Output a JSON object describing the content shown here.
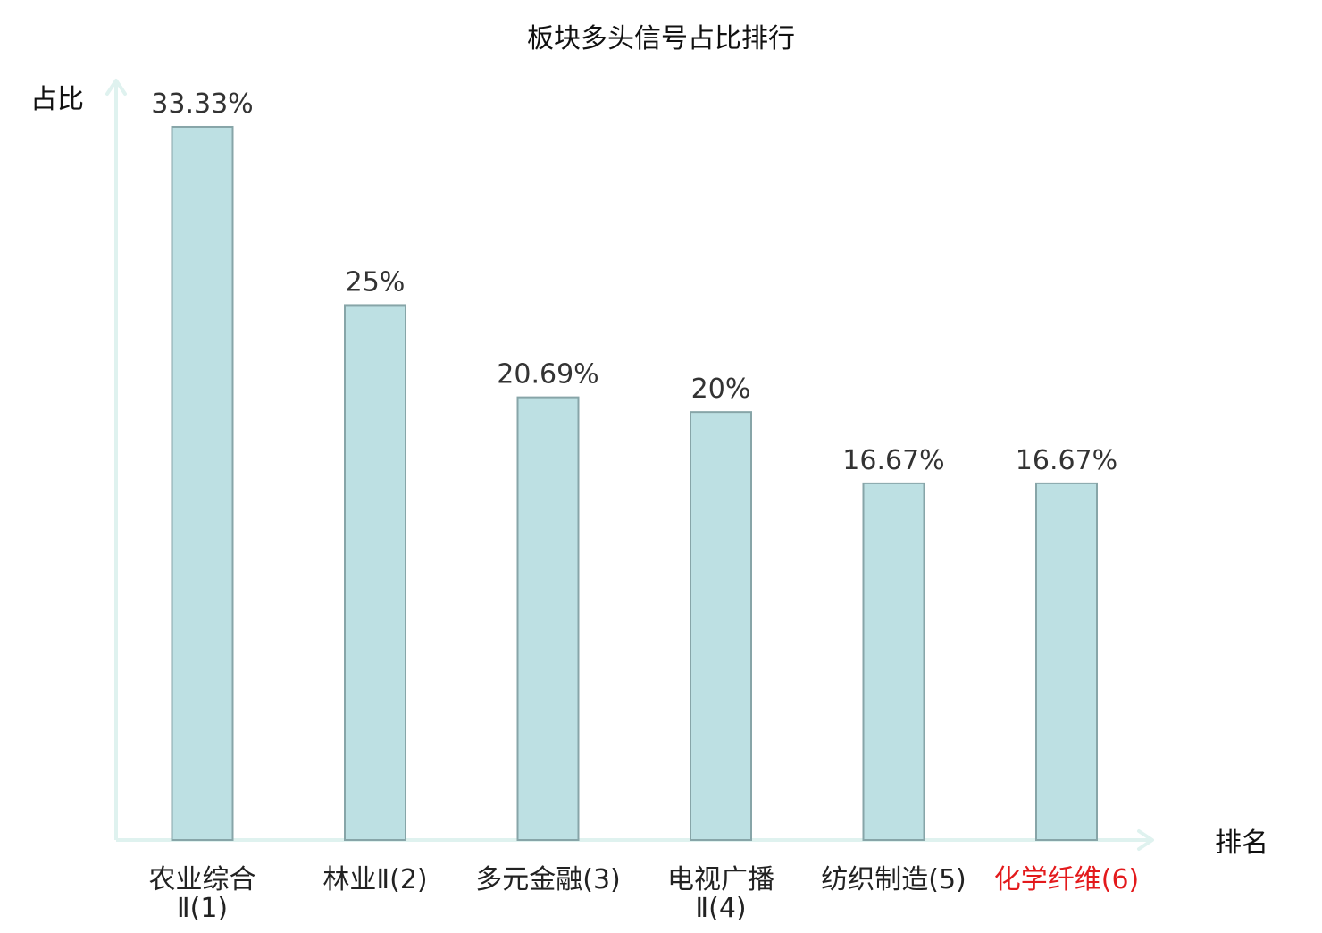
{
  "chart_data": {
    "type": "bar",
    "title": "板块多头信号占比排行",
    "ylabel": "占比",
    "xlabel": "排名",
    "ylim": [
      0,
      35
    ],
    "grid": false,
    "categories": [
      [
        "农业综合",
        "Ⅱ(1)"
      ],
      [
        "林业Ⅱ(2)"
      ],
      [
        "多元金融(3)"
      ],
      [
        "电视广播",
        "Ⅱ(4)"
      ],
      [
        "纺织制造(5)"
      ],
      [
        "化学纤维(6)"
      ]
    ],
    "values": [
      33.33,
      25,
      20.69,
      20,
      16.67,
      16.67
    ],
    "value_labels": [
      "33.33%",
      "25%",
      "20.69%",
      "20%",
      "16.67%",
      "16.67%"
    ],
    "highlight_index": 5,
    "colors": {
      "bar_fill": "#bde0e3",
      "bar_stroke": "#87a5a8",
      "axis": "#dff2ef",
      "text": "#333333",
      "label": "#222222",
      "highlight": "#e31a1c"
    }
  }
}
